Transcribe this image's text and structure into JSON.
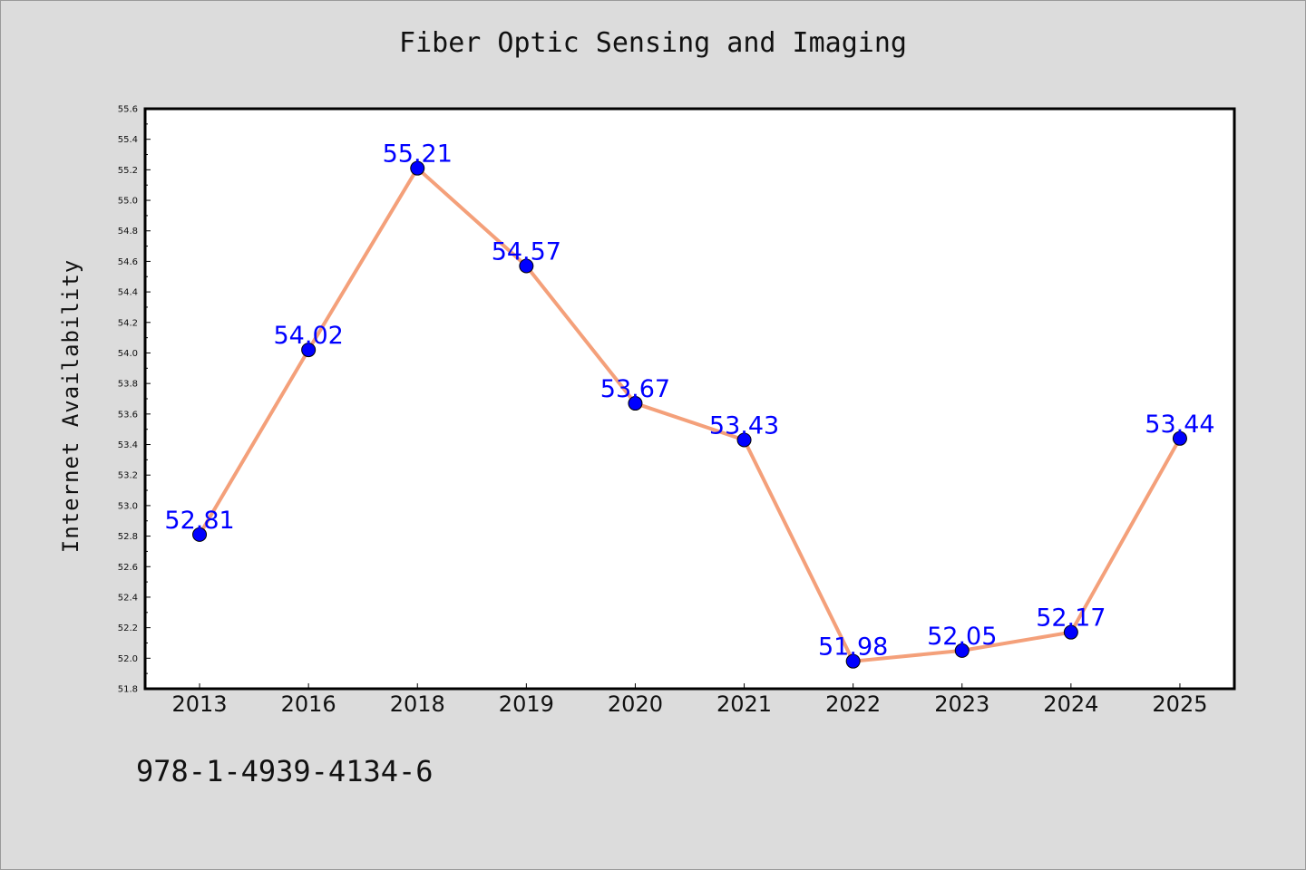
{
  "chart_data": {
    "type": "line",
    "title": "Fiber Optic Sensing and Imaging",
    "xlabel": "",
    "ylabel": "Internet Availability",
    "categories": [
      "2013",
      "2016",
      "2018",
      "2019",
      "2020",
      "2021",
      "2022",
      "2023",
      "2024",
      "2025"
    ],
    "values": [
      52.81,
      54.02,
      55.21,
      54.57,
      53.67,
      53.43,
      51.98,
      52.05,
      52.17,
      53.44
    ],
    "data_labels": [
      "52.81",
      "54.02",
      "55.21",
      "54.57",
      "53.67",
      "53.43",
      "51.98",
      "52.05",
      "52.17",
      "53.44"
    ],
    "ylim": [
      51.8,
      55.6
    ],
    "y_ticks": [
      "51.8",
      "52.0",
      "52.2",
      "52.4",
      "52.6",
      "52.8",
      "53.0",
      "53.2",
      "53.4",
      "53.6",
      "53.8",
      "54.0",
      "54.2",
      "54.4",
      "54.6",
      "54.8",
      "55.0",
      "55.2",
      "55.4",
      "55.6"
    ],
    "grid": false,
    "legend": "none",
    "line_color": "#f4a07a",
    "marker_color": "#0000ff",
    "label_color": "#0000ff",
    "background_color": "#dcdcdc",
    "plot_background": "#ffffff"
  },
  "footer": {
    "code": "978-1-4939-4134-6"
  }
}
